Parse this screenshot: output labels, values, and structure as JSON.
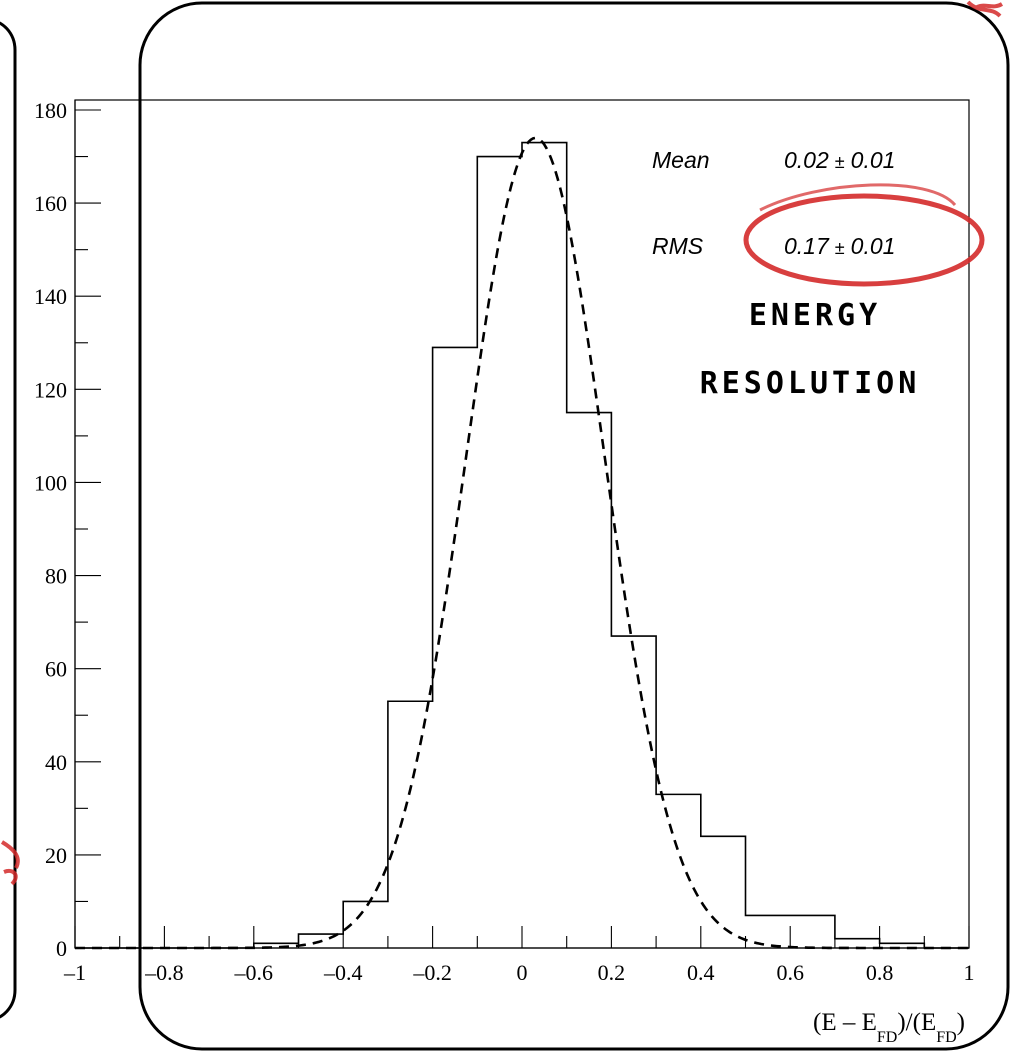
{
  "chart_data": {
    "type": "histogram",
    "xlabel": {
      "parts": [
        "(E – E",
        "FD",
        ")/(E",
        "FD",
        ")"
      ]
    },
    "xlim": [
      -1,
      1
    ],
    "ylim": [
      0,
      182
    ],
    "x_ticks": [
      -1,
      -0.8,
      -0.6,
      -0.4,
      -0.2,
      0,
      0.2,
      0.4,
      0.6,
      0.8,
      1
    ],
    "x_tick_labels": [
      "–1",
      "–0.8",
      "–0.6",
      "–0.4",
      "–0.2",
      "0",
      "0.2",
      "0.4",
      "0.6",
      "0.8",
      "1"
    ],
    "y_ticks": [
      0,
      20,
      40,
      60,
      80,
      100,
      120,
      140,
      160,
      180
    ],
    "y_tick_labels": [
      "0",
      "20",
      "40",
      "60",
      "80",
      "100",
      "120",
      "140",
      "160",
      "180"
    ],
    "bins": [
      {
        "x0": -1.0,
        "x1": -0.9,
        "count": 0
      },
      {
        "x0": -0.9,
        "x1": -0.8,
        "count": 0
      },
      {
        "x0": -0.8,
        "x1": -0.7,
        "count": 0
      },
      {
        "x0": -0.7,
        "x1": -0.6,
        "count": 0
      },
      {
        "x0": -0.6,
        "x1": -0.5,
        "count": 1
      },
      {
        "x0": -0.5,
        "x1": -0.4,
        "count": 3
      },
      {
        "x0": -0.4,
        "x1": -0.3,
        "count": 10
      },
      {
        "x0": -0.3,
        "x1": -0.2,
        "count": 53
      },
      {
        "x0": -0.2,
        "x1": -0.1,
        "count": 129
      },
      {
        "x0": -0.1,
        "x1": 0.0,
        "count": 170
      },
      {
        "x0": 0.0,
        "x1": 0.1,
        "count": 173
      },
      {
        "x0": 0.1,
        "x1": 0.2,
        "count": 115
      },
      {
        "x0": 0.2,
        "x1": 0.3,
        "count": 67
      },
      {
        "x0": 0.3,
        "x1": 0.4,
        "count": 33
      },
      {
        "x0": 0.4,
        "x1": 0.5,
        "count": 24
      },
      {
        "x0": 0.5,
        "x1": 0.7,
        "count": 7
      },
      {
        "x0": 0.7,
        "x1": 0.8,
        "count": 2
      },
      {
        "x0": 0.8,
        "x1": 0.9,
        "count": 1
      },
      {
        "x0": 0.9,
        "x1": 1.0,
        "count": 0
      }
    ],
    "fit": {
      "function": "gaussian",
      "style": "dashed",
      "amplitude": 174,
      "mean": 0.03,
      "sigma": 0.155
    },
    "stats": {
      "mean_label": "Mean",
      "mean_value": "0.02",
      "mean_error": "0.01",
      "rms_label": "RMS",
      "rms_value": "0.17",
      "rms_error": "0.01",
      "pm_symbol": "±"
    },
    "annotation": {
      "line1": "ENERGY",
      "line2": "RESOLUTION",
      "highlight_color": "#d42a2a"
    },
    "frame_color": "#000000",
    "line_color": "#000000"
  }
}
